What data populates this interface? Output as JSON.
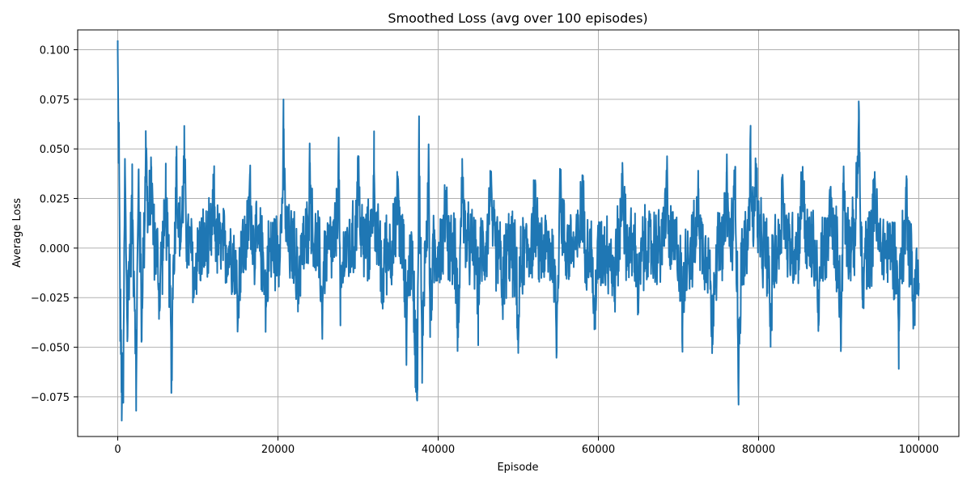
{
  "chart_data": {
    "type": "line",
    "title": "Smoothed Loss (avg over 100 episodes)",
    "xlabel": "Episode",
    "ylabel": "Average Loss",
    "xlim": [
      -5000,
      105000
    ],
    "ylim": [
      -0.095,
      0.11
    ],
    "grid": true,
    "x_ticks": [
      0,
      20000,
      40000,
      60000,
      80000,
      100000
    ],
    "x_tick_labels": [
      "0",
      "20000",
      "40000",
      "60000",
      "80000",
      "100000"
    ],
    "y_ticks": [
      -0.075,
      -0.05,
      -0.025,
      0.0,
      0.025,
      0.05,
      0.075,
      0.1
    ],
    "y_tick_labels": [
      "−0.075",
      "−0.050",
      "−0.025",
      "0.000",
      "0.025",
      "0.050",
      "0.075",
      "0.100"
    ],
    "series": [
      {
        "name": "Smoothed Loss",
        "color": "#1f77b4",
        "x_start": 0,
        "x_end": 100000,
        "noise_amplitude": 0.018,
        "extrema": [
          {
            "x": 0,
            "y": 0.1
          },
          {
            "x": 150,
            "y": 0.057
          },
          {
            "x": 300,
            "y": -0.033
          },
          {
            "x": 500,
            "y": -0.087
          },
          {
            "x": 700,
            "y": -0.078
          },
          {
            "x": 900,
            "y": 0.045
          },
          {
            "x": 1200,
            "y": -0.047
          },
          {
            "x": 1800,
            "y": 0.027
          },
          {
            "x": 2300,
            "y": -0.082
          },
          {
            "x": 2600,
            "y": 0.039
          },
          {
            "x": 3000,
            "y": -0.043
          },
          {
            "x": 3500,
            "y": 0.059
          },
          {
            "x": 4200,
            "y": 0.041
          },
          {
            "x": 5200,
            "y": -0.03
          },
          {
            "x": 6000,
            "y": 0.03
          },
          {
            "x": 6700,
            "y": -0.073
          },
          {
            "x": 7300,
            "y": 0.046
          },
          {
            "x": 8300,
            "y": 0.047
          },
          {
            "x": 9500,
            "y": -0.025
          },
          {
            "x": 12000,
            "y": 0.026
          },
          {
            "x": 15000,
            "y": -0.036
          },
          {
            "x": 16500,
            "y": 0.035
          },
          {
            "x": 18500,
            "y": -0.03
          },
          {
            "x": 20700,
            "y": 0.054
          },
          {
            "x": 22500,
            "y": -0.028
          },
          {
            "x": 24000,
            "y": 0.043
          },
          {
            "x": 25500,
            "y": -0.036
          },
          {
            "x": 27600,
            "y": 0.047
          },
          {
            "x": 27800,
            "y": -0.039
          },
          {
            "x": 30000,
            "y": 0.044
          },
          {
            "x": 32000,
            "y": 0.04
          },
          {
            "x": 33000,
            "y": -0.028
          },
          {
            "x": 35000,
            "y": 0.035
          },
          {
            "x": 36000,
            "y": -0.042
          },
          {
            "x": 37200,
            "y": -0.066
          },
          {
            "x": 37400,
            "y": -0.072
          },
          {
            "x": 37600,
            "y": 0.058
          },
          {
            "x": 38000,
            "y": -0.068
          },
          {
            "x": 38800,
            "y": 0.048
          },
          {
            "x": 39000,
            "y": -0.039
          },
          {
            "x": 41000,
            "y": 0.029
          },
          {
            "x": 42500,
            "y": -0.045
          },
          {
            "x": 43000,
            "y": 0.045
          },
          {
            "x": 45000,
            "y": -0.028
          },
          {
            "x": 46500,
            "y": 0.039
          },
          {
            "x": 48000,
            "y": -0.025
          },
          {
            "x": 50000,
            "y": -0.049
          },
          {
            "x": 52000,
            "y": 0.025
          },
          {
            "x": 54800,
            "y": -0.052
          },
          {
            "x": 55200,
            "y": 0.04
          },
          {
            "x": 58000,
            "y": 0.032
          },
          {
            "x": 59500,
            "y": -0.041
          },
          {
            "x": 62000,
            "y": -0.024
          },
          {
            "x": 63000,
            "y": 0.043
          },
          {
            "x": 65000,
            "y": -0.03
          },
          {
            "x": 68500,
            "y": 0.038
          },
          {
            "x": 70500,
            "y": -0.041
          },
          {
            "x": 72500,
            "y": 0.03
          },
          {
            "x": 74200,
            "y": -0.053
          },
          {
            "x": 76000,
            "y": 0.034
          },
          {
            "x": 77100,
            "y": 0.041
          },
          {
            "x": 77500,
            "y": -0.074
          },
          {
            "x": 79000,
            "y": 0.05
          },
          {
            "x": 79700,
            "y": 0.042
          },
          {
            "x": 81500,
            "y": -0.045
          },
          {
            "x": 83000,
            "y": 0.037
          },
          {
            "x": 85500,
            "y": 0.041
          },
          {
            "x": 87500,
            "y": -0.039
          },
          {
            "x": 89000,
            "y": 0.031
          },
          {
            "x": 90300,
            "y": -0.048
          },
          {
            "x": 90600,
            "y": 0.037
          },
          {
            "x": 92500,
            "y": 0.074
          },
          {
            "x": 93000,
            "y": -0.03
          },
          {
            "x": 94500,
            "y": 0.037
          },
          {
            "x": 97500,
            "y": -0.042
          },
          {
            "x": 98500,
            "y": 0.035
          },
          {
            "x": 99300,
            "y": -0.038
          },
          {
            "x": 100000,
            "y": -0.021
          }
        ]
      }
    ]
  }
}
